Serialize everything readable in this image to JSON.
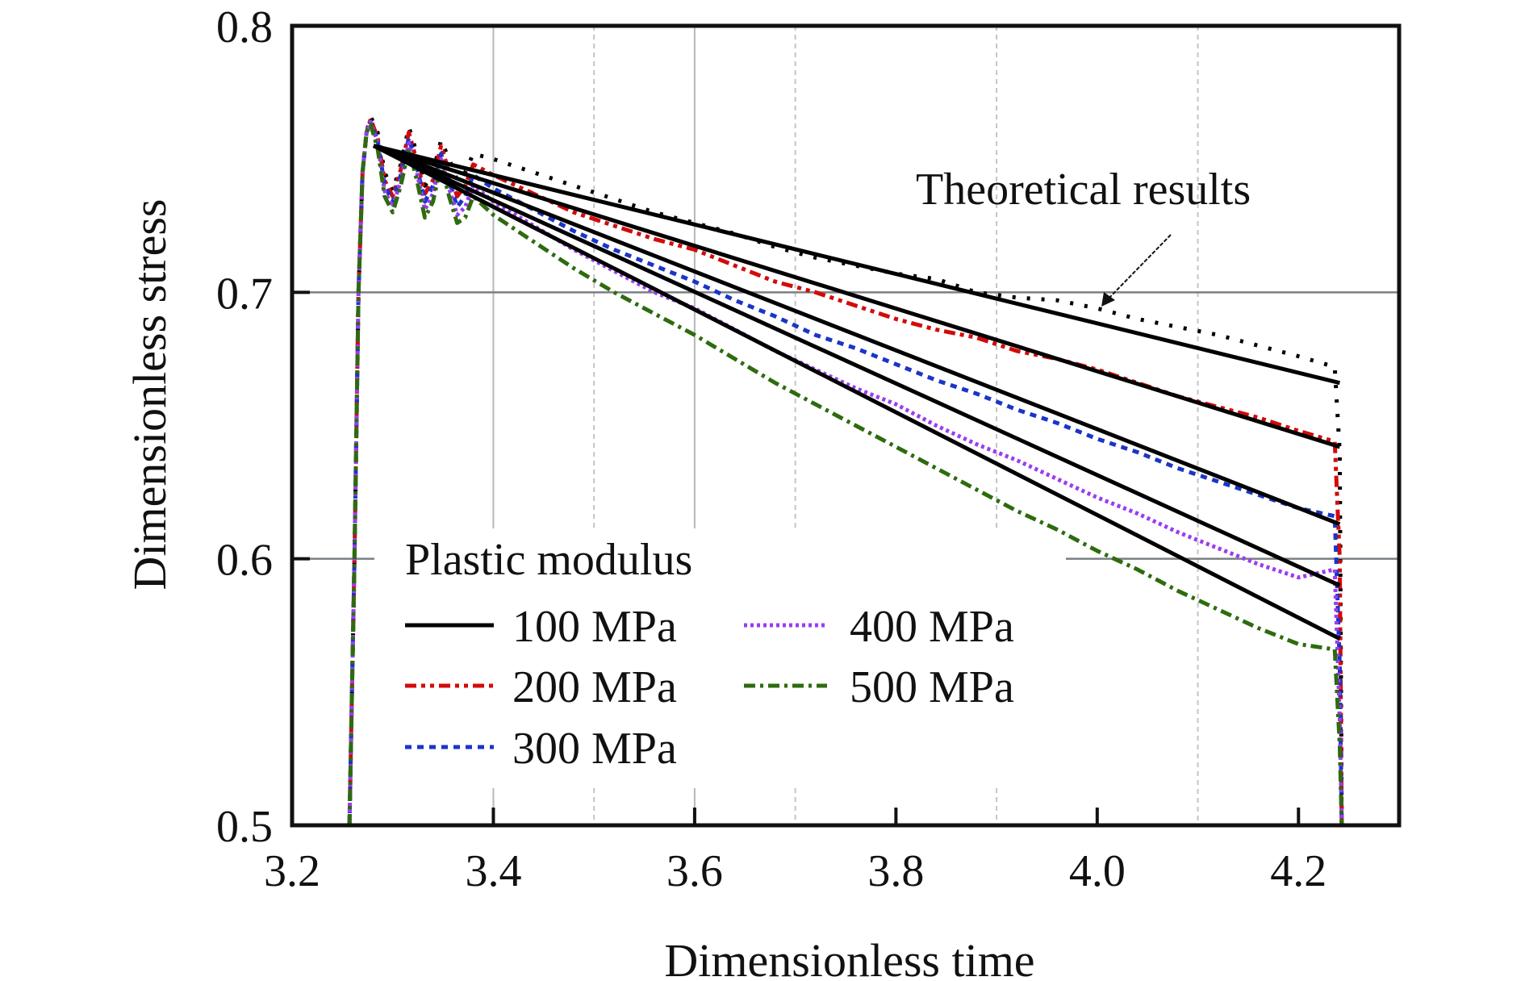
{
  "chart_data": {
    "type": "line",
    "title": "",
    "xlabel": "Dimensionless time",
    "ylabel": "Dimensionless stress",
    "xlim": [
      3.2,
      4.3
    ],
    "ylim": [
      0.5,
      0.8
    ],
    "xticks": [
      3.2,
      3.4,
      3.6,
      3.8,
      4.0,
      4.2
    ],
    "xtick_labels": [
      "3.2",
      "3.4",
      "3.6",
      "3.8",
      "4.0",
      "4.2"
    ],
    "yticks": [
      0.5,
      0.6,
      0.7,
      0.8
    ],
    "ytick_labels": [
      "0.5",
      "0.6",
      "0.7",
      "0.8"
    ],
    "grid": {
      "x_major_solid": [
        3.4,
        3.6
      ],
      "x_minor_dashed": [
        3.5,
        3.7,
        3.9,
        4.1
      ],
      "y_major": [
        0.6,
        0.7
      ]
    },
    "legend": {
      "title": "Plastic modulus",
      "placement": "lower-left",
      "columns": 2
    },
    "annotation": {
      "text": "Theoretical results",
      "points_to": [
        4.0,
        0.696
      ]
    },
    "theoretical": {
      "start": [
        3.281,
        0.755
      ],
      "end_x": 4.241,
      "color": "#000000"
    },
    "series": [
      {
        "name": "100 MPa",
        "color": "#000000",
        "dash": "dotted-sparse",
        "theory_end": 0.666,
        "x": [
          3.257,
          3.262,
          3.266,
          3.27,
          3.274,
          3.278,
          3.285,
          3.292,
          3.3,
          3.308,
          3.316,
          3.324,
          3.332,
          3.34,
          3.348,
          3.356,
          3.364,
          3.372,
          3.38,
          3.4,
          3.44,
          3.48,
          3.52,
          3.56,
          3.6,
          3.64,
          3.68,
          3.72,
          3.76,
          3.8,
          3.84,
          3.88,
          3.92,
          3.96,
          4.0,
          4.04,
          4.08,
          4.12,
          4.16,
          4.2,
          4.236,
          4.241,
          4.243
        ],
        "y": [
          0.5,
          0.6,
          0.7,
          0.745,
          0.76,
          0.766,
          0.76,
          0.745,
          0.738,
          0.748,
          0.762,
          0.752,
          0.74,
          0.745,
          0.757,
          0.75,
          0.742,
          0.745,
          0.752,
          0.75,
          0.745,
          0.74,
          0.735,
          0.73,
          0.726,
          0.722,
          0.717,
          0.713,
          0.71,
          0.707,
          0.705,
          0.7,
          0.698,
          0.697,
          0.694,
          0.69,
          0.687,
          0.684,
          0.68,
          0.676,
          0.672,
          0.64,
          0.5
        ]
      },
      {
        "name": "200 MPa",
        "color": "#d40a0a",
        "dash": "dash-dot-dot",
        "theory_end": 0.642,
        "x": [
          3.257,
          3.262,
          3.266,
          3.27,
          3.274,
          3.278,
          3.285,
          3.292,
          3.3,
          3.308,
          3.316,
          3.324,
          3.332,
          3.34,
          3.348,
          3.356,
          3.364,
          3.372,
          3.38,
          3.4,
          3.44,
          3.48,
          3.52,
          3.56,
          3.6,
          3.64,
          3.68,
          3.72,
          3.76,
          3.8,
          3.84,
          3.88,
          3.92,
          3.96,
          4.0,
          4.04,
          4.08,
          4.12,
          4.16,
          4.2,
          4.236,
          4.241,
          4.243
        ],
        "y": [
          0.5,
          0.6,
          0.7,
          0.745,
          0.76,
          0.765,
          0.758,
          0.742,
          0.736,
          0.746,
          0.76,
          0.749,
          0.737,
          0.742,
          0.755,
          0.745,
          0.736,
          0.74,
          0.748,
          0.744,
          0.737,
          0.73,
          0.725,
          0.72,
          0.716,
          0.71,
          0.704,
          0.7,
          0.695,
          0.69,
          0.686,
          0.683,
          0.678,
          0.675,
          0.671,
          0.666,
          0.661,
          0.657,
          0.653,
          0.648,
          0.644,
          0.6,
          0.5
        ]
      },
      {
        "name": "300 MPa",
        "color": "#1a35c8",
        "dash": "dashed-short",
        "theory_end": 0.613,
        "x": [
          3.257,
          3.262,
          3.266,
          3.27,
          3.274,
          3.278,
          3.285,
          3.292,
          3.3,
          3.308,
          3.316,
          3.324,
          3.332,
          3.34,
          3.348,
          3.356,
          3.364,
          3.372,
          3.38,
          3.4,
          3.44,
          3.48,
          3.52,
          3.56,
          3.6,
          3.64,
          3.68,
          3.72,
          3.76,
          3.8,
          3.84,
          3.88,
          3.92,
          3.96,
          4.0,
          4.04,
          4.08,
          4.12,
          4.16,
          4.2,
          4.236,
          4.241,
          4.243
        ],
        "y": [
          0.5,
          0.6,
          0.7,
          0.745,
          0.76,
          0.764,
          0.757,
          0.74,
          0.734,
          0.744,
          0.758,
          0.747,
          0.734,
          0.74,
          0.752,
          0.742,
          0.732,
          0.736,
          0.744,
          0.739,
          0.731,
          0.723,
          0.716,
          0.71,
          0.704,
          0.697,
          0.691,
          0.684,
          0.679,
          0.673,
          0.667,
          0.662,
          0.656,
          0.651,
          0.645,
          0.64,
          0.634,
          0.629,
          0.624,
          0.619,
          0.616,
          0.56,
          0.5
        ]
      },
      {
        "name": "400 MPa",
        "color": "#9b3cf0",
        "dash": "dotted-dense",
        "theory_end": 0.59,
        "x": [
          3.257,
          3.262,
          3.266,
          3.27,
          3.274,
          3.278,
          3.285,
          3.292,
          3.3,
          3.308,
          3.316,
          3.324,
          3.332,
          3.34,
          3.348,
          3.356,
          3.364,
          3.372,
          3.38,
          3.4,
          3.44,
          3.48,
          3.52,
          3.56,
          3.6,
          3.64,
          3.68,
          3.72,
          3.76,
          3.8,
          3.84,
          3.88,
          3.92,
          3.96,
          4.0,
          4.04,
          4.08,
          4.12,
          4.16,
          4.2,
          4.236,
          4.241,
          4.243
        ],
        "y": [
          0.5,
          0.6,
          0.7,
          0.745,
          0.76,
          0.764,
          0.756,
          0.738,
          0.732,
          0.742,
          0.756,
          0.745,
          0.731,
          0.737,
          0.75,
          0.739,
          0.729,
          0.732,
          0.74,
          0.734,
          0.725,
          0.716,
          0.708,
          0.7,
          0.694,
          0.686,
          0.678,
          0.671,
          0.664,
          0.658,
          0.65,
          0.643,
          0.637,
          0.63,
          0.623,
          0.617,
          0.61,
          0.604,
          0.598,
          0.593,
          0.596,
          0.54,
          0.5
        ]
      },
      {
        "name": "500 MPa",
        "color": "#2e6b0e",
        "dash": "dash-dot",
        "theory_end": 0.57,
        "x": [
          3.257,
          3.262,
          3.266,
          3.27,
          3.274,
          3.278,
          3.285,
          3.292,
          3.3,
          3.308,
          3.316,
          3.324,
          3.332,
          3.34,
          3.348,
          3.356,
          3.364,
          3.372,
          3.38,
          3.4,
          3.44,
          3.48,
          3.52,
          3.56,
          3.6,
          3.64,
          3.68,
          3.72,
          3.76,
          3.8,
          3.84,
          3.88,
          3.92,
          3.96,
          4.0,
          4.04,
          4.08,
          4.12,
          4.16,
          4.2,
          4.236,
          4.241,
          4.243
        ],
        "y": [
          0.5,
          0.6,
          0.7,
          0.745,
          0.76,
          0.763,
          0.754,
          0.736,
          0.73,
          0.74,
          0.754,
          0.742,
          0.728,
          0.734,
          0.748,
          0.736,
          0.726,
          0.728,
          0.736,
          0.729,
          0.719,
          0.709,
          0.7,
          0.692,
          0.684,
          0.675,
          0.666,
          0.658,
          0.65,
          0.642,
          0.634,
          0.626,
          0.618,
          0.611,
          0.603,
          0.596,
          0.588,
          0.581,
          0.574,
          0.568,
          0.566,
          0.53,
          0.5
        ]
      }
    ]
  }
}
